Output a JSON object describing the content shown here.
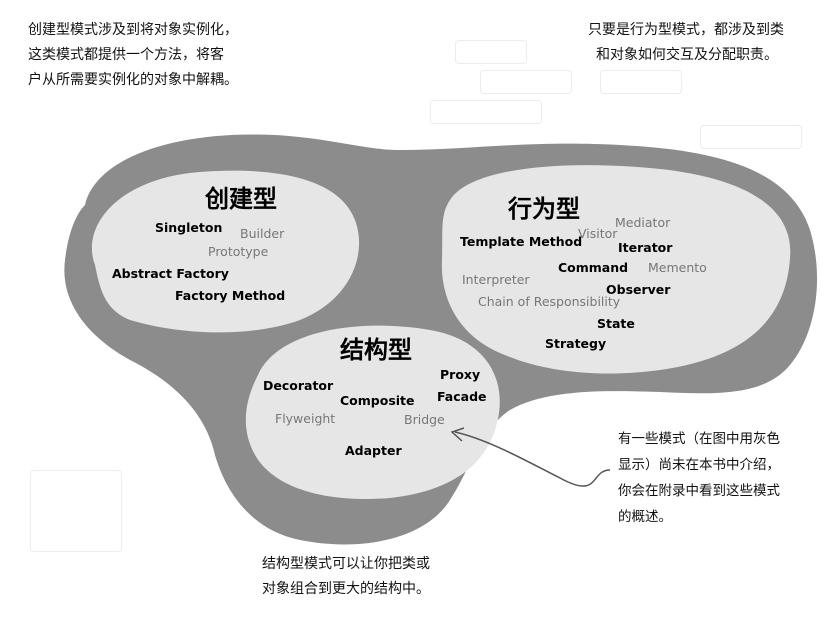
{
  "callouts": {
    "creational_line1": "创建型模式涉及到将对象实例化，",
    "creational_line2": "这类模式都提供一个方法，将客",
    "creational_line3": "户从所需要实例化的对象中解耦。",
    "behavioral_line1": "只要是行为型模式，都涉及到类",
    "behavioral_line2": "和对象如何交互及分配职责。",
    "structural_line1": "结构型模式可以让你把类或",
    "structural_line2": "对象组合到更大的结构中。"
  },
  "note": {
    "line1": "有一些模式（在图中用灰色",
    "line2": "显示）尚未在本书中介绍，",
    "line3": "你会在附录中看到这些模式",
    "line4": "的概述。"
  },
  "groups": {
    "creational": {
      "title": "创建型",
      "patterns": [
        {
          "label": "Singleton",
          "shade": "dark"
        },
        {
          "label": "Builder",
          "shade": "gray"
        },
        {
          "label": "Prototype",
          "shade": "gray"
        },
        {
          "label": "Abstract Factory",
          "shade": "dark"
        },
        {
          "label": "Factory Method",
          "shade": "dark"
        }
      ]
    },
    "behavioral": {
      "title": "行为型",
      "patterns": [
        {
          "label": "Mediator",
          "shade": "gray"
        },
        {
          "label": "Template Method",
          "shade": "dark"
        },
        {
          "label": "Visitor",
          "shade": "gray"
        },
        {
          "label": "Iterator",
          "shade": "dark"
        },
        {
          "label": "Command",
          "shade": "dark"
        },
        {
          "label": "Memento",
          "shade": "gray"
        },
        {
          "label": "Interpreter",
          "shade": "gray"
        },
        {
          "label": "Observer",
          "shade": "dark"
        },
        {
          "label": "Chain of Responsibility",
          "shade": "gray"
        },
        {
          "label": "State",
          "shade": "dark"
        },
        {
          "label": "Strategy",
          "shade": "dark"
        }
      ]
    },
    "structural": {
      "title": "结构型",
      "patterns": [
        {
          "label": "Proxy",
          "shade": "dark"
        },
        {
          "label": "Decorator",
          "shade": "dark"
        },
        {
          "label": "Facade",
          "shade": "dark"
        },
        {
          "label": "Composite",
          "shade": "dark"
        },
        {
          "label": "Flyweight",
          "shade": "gray"
        },
        {
          "label": "Bridge",
          "shade": "gray"
        },
        {
          "label": "Adapter",
          "shade": "dark"
        }
      ]
    }
  },
  "colors": {
    "outer_blob": "#8c8c8c",
    "inner_blob": "#e6e6e6",
    "dark_text": "#000000",
    "gray_text": "#777777"
  }
}
